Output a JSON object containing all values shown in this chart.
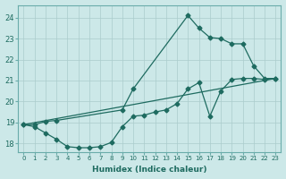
{
  "xlabel": "Humidex (Indice chaleur)",
  "ylabel": "",
  "bg_color": "#cce8e8",
  "grid_color": "#aacccc",
  "line_color": "#1e6b60",
  "xlim": [
    -0.5,
    23.5
  ],
  "ylim": [
    17.6,
    24.6
  ],
  "yticks": [
    18,
    19,
    20,
    21,
    22,
    23,
    24
  ],
  "xticks": [
    0,
    1,
    2,
    3,
    4,
    5,
    6,
    7,
    8,
    9,
    10,
    11,
    12,
    13,
    14,
    15,
    16,
    17,
    18,
    19,
    20,
    21,
    22,
    23
  ],
  "series1_x": [
    0,
    1,
    2,
    3,
    4,
    5,
    6,
    7,
    8,
    9,
    10,
    11,
    12,
    13,
    14,
    15,
    16,
    17,
    18,
    19,
    20,
    21,
    22,
    23
  ],
  "series1_y": [
    18.9,
    18.8,
    18.5,
    18.2,
    17.85,
    17.8,
    17.8,
    17.85,
    18.05,
    18.8,
    19.3,
    19.35,
    19.5,
    19.6,
    19.9,
    20.6,
    20.9,
    19.3,
    20.5,
    21.05,
    21.1,
    21.1,
    21.05,
    21.1
  ],
  "series2_x": [
    0,
    1,
    2,
    3,
    9,
    10,
    15,
    16,
    17,
    18,
    19,
    20,
    21,
    22,
    23
  ],
  "series2_y": [
    18.9,
    18.9,
    19.05,
    19.1,
    19.6,
    20.6,
    24.1,
    23.5,
    23.05,
    23.0,
    22.75,
    22.75,
    21.7,
    21.1,
    21.1
  ],
  "series3_x": [
    0,
    23
  ],
  "series3_y": [
    18.9,
    21.1
  ]
}
